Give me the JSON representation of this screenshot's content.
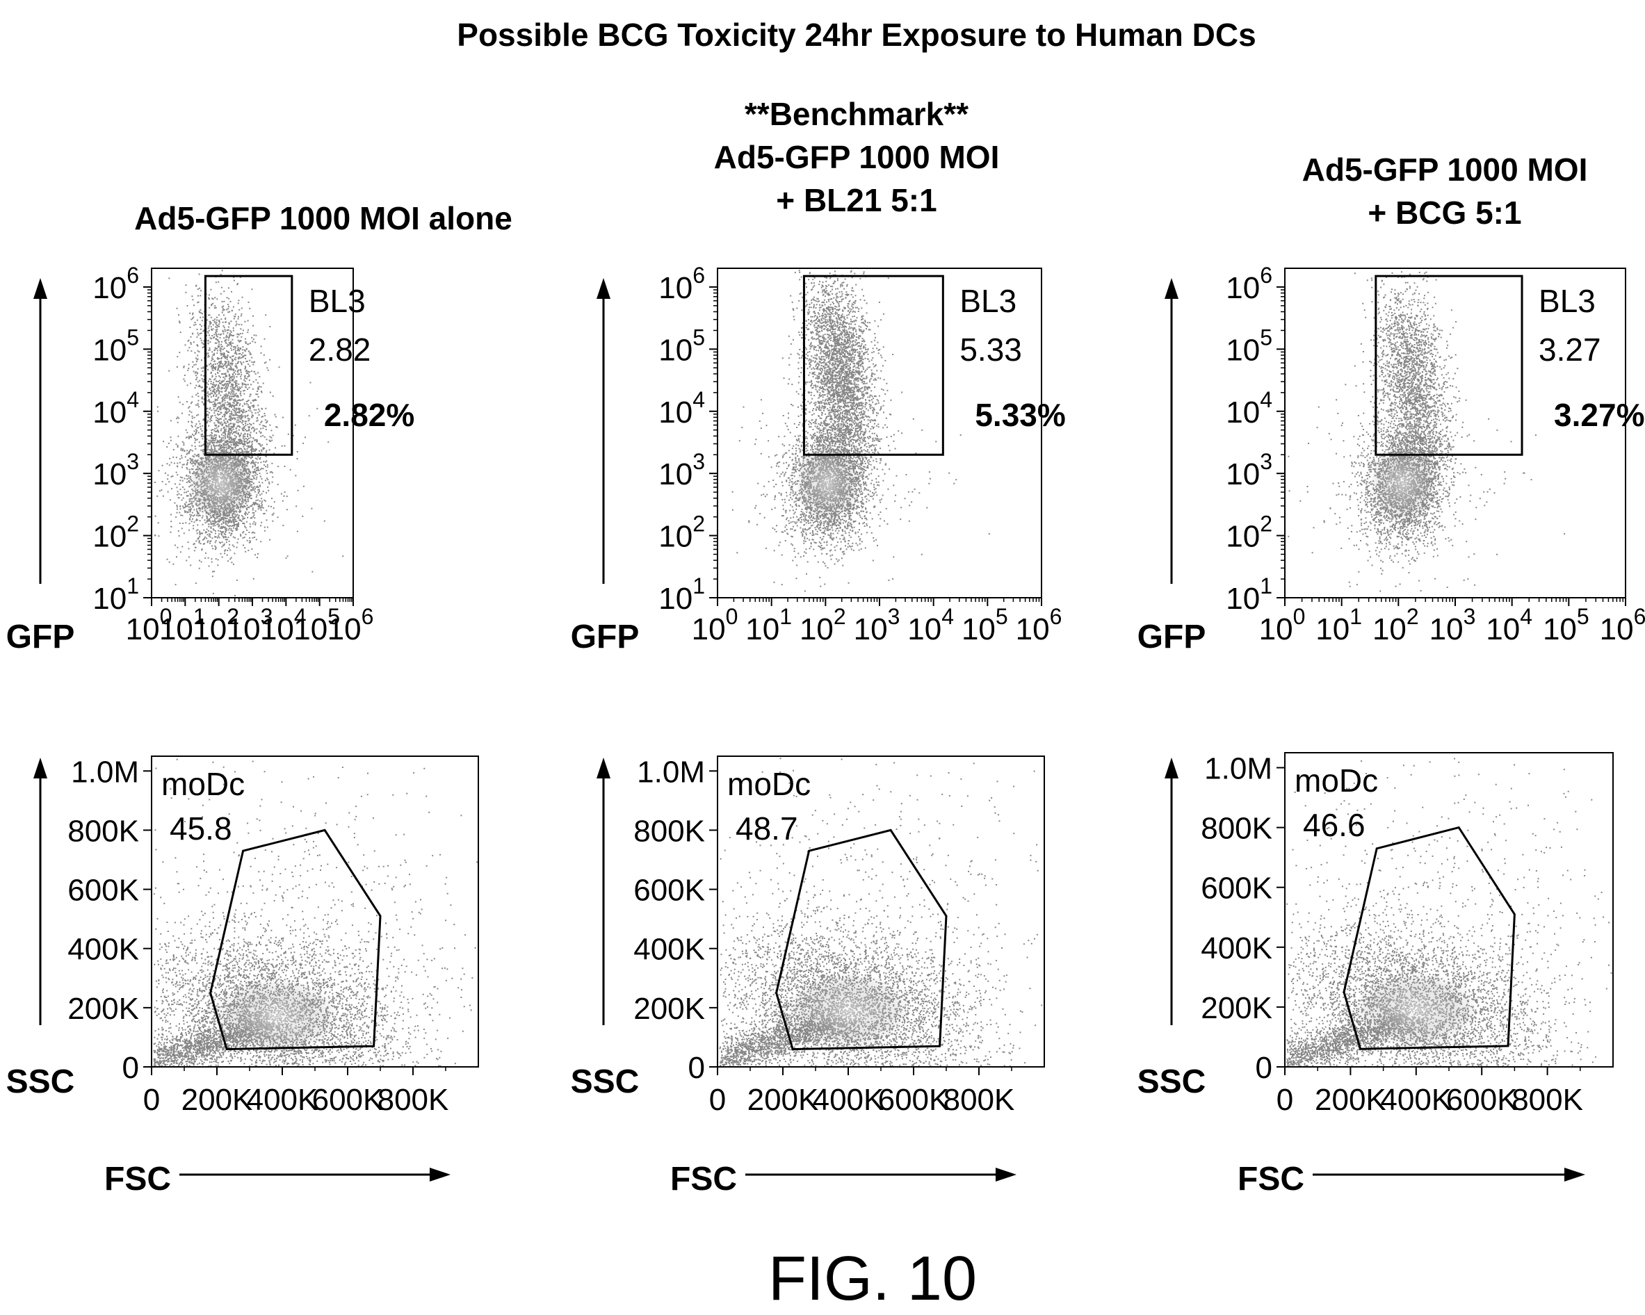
{
  "title": "Possible BCG Toxicity 24hr Exposure to Human DCs",
  "figure_label": "FIG. 10",
  "panels": [
    {
      "title_lines": [
        "Ad5-GFP 1000 MOI alone"
      ]
    },
    {
      "title_lines": [
        "**Benchmark**",
        "Ad5-GFP 1000 MOI",
        "+ BL21 5:1"
      ]
    },
    {
      "title_lines": [
        "Ad5-GFP 1000 MOI",
        "+ BCG 5:1"
      ]
    }
  ],
  "chart_data": [
    {
      "type": "scatter",
      "subtype": "flow-cytometry-density",
      "condition": "Ad5-GFP 1000 MOI alone",
      "xlabel": "",
      "ylabel": "GFP",
      "x_scale": "log",
      "y_scale": "log",
      "xlim": [
        1,
        1000000
      ],
      "ylim": [
        10,
        2000000
      ],
      "x_ticks": [
        "0",
        "1",
        "2",
        "3",
        "4",
        "5",
        "6"
      ],
      "y_ticks": [
        "1",
        "2",
        "3",
        "4",
        "5",
        "6"
      ],
      "tick_base": "10",
      "gate": {
        "name": "BL3",
        "value": "2.82",
        "percent": "2.82%",
        "shape": "rectangle",
        "x_range": [
          40,
          15000
        ],
        "y_range": [
          2000,
          1500000
        ]
      },
      "population": {
        "center": [
          120,
          700
        ],
        "positive_center": [
          160,
          25000
        ]
      }
    },
    {
      "type": "scatter",
      "subtype": "flow-cytometry-density",
      "condition": "Ad5-GFP 1000 MOI + BL21 5:1",
      "xlabel": "",
      "ylabel": "GFP",
      "x_scale": "log",
      "y_scale": "log",
      "xlim": [
        1,
        1000000
      ],
      "ylim": [
        10,
        2000000
      ],
      "x_ticks": [
        "0",
        "1",
        "2",
        "3",
        "4",
        "5",
        "6"
      ],
      "y_ticks": [
        "1",
        "2",
        "3",
        "4",
        "5",
        "6"
      ],
      "tick_base": "10",
      "gate": {
        "name": "BL3",
        "value": "5.33",
        "percent": "5.33%",
        "shape": "rectangle",
        "x_range": [
          40,
          15000
        ],
        "y_range": [
          2000,
          1500000
        ]
      },
      "population": {
        "center": [
          110,
          700
        ],
        "positive_center": [
          180,
          40000
        ]
      }
    },
    {
      "type": "scatter",
      "subtype": "flow-cytometry-density",
      "condition": "Ad5-GFP 1000 MOI + BCG 5:1",
      "xlabel": "",
      "ylabel": "GFP",
      "x_scale": "log",
      "y_scale": "log",
      "xlim": [
        1,
        1000000
      ],
      "ylim": [
        10,
        2000000
      ],
      "x_ticks": [
        "0",
        "1",
        "2",
        "3",
        "4",
        "5",
        "6"
      ],
      "y_ticks": [
        "1",
        "2",
        "3",
        "4",
        "5",
        "6"
      ],
      "tick_base": "10",
      "gate": {
        "name": "BL3",
        "value": "3.27",
        "percent": "3.27%",
        "shape": "rectangle",
        "x_range": [
          40,
          15000
        ],
        "y_range": [
          2000,
          1500000
        ]
      },
      "population": {
        "center": [
          120,
          700
        ],
        "positive_center": [
          170,
          30000
        ]
      }
    },
    {
      "type": "scatter",
      "subtype": "flow-cytometry-density",
      "condition": "Ad5-GFP 1000 MOI alone",
      "xlabel": "FSC",
      "ylabel": "SSC",
      "x_scale": "linear",
      "y_scale": "linear",
      "xlim": [
        0,
        1000000
      ],
      "ylim": [
        0,
        1050000
      ],
      "x_ticks": [
        "0",
        "200K",
        "400K",
        "600K",
        "800K"
      ],
      "x_tick_values": [
        0,
        200000,
        400000,
        600000,
        800000
      ],
      "y_ticks": [
        "0",
        "200K",
        "400K",
        "600K",
        "800K",
        "1.0M"
      ],
      "y_tick_values": [
        0,
        200000,
        400000,
        600000,
        800000,
        1000000
      ],
      "gate": {
        "name": "moDc",
        "value": "45.8",
        "shape": "polygon",
        "vertices": [
          [
            180000,
            250000
          ],
          [
            280000,
            730000
          ],
          [
            530000,
            800000
          ],
          [
            700000,
            510000
          ],
          [
            680000,
            70000
          ],
          [
            230000,
            60000
          ]
        ]
      },
      "population": {
        "center": [
          380000,
          170000
        ]
      }
    },
    {
      "type": "scatter",
      "subtype": "flow-cytometry-density",
      "condition": "Ad5-GFP 1000 MOI + BL21 5:1",
      "xlabel": "FSC",
      "ylabel": "SSC",
      "x_scale": "linear",
      "y_scale": "linear",
      "xlim": [
        0,
        1000000
      ],
      "ylim": [
        0,
        1050000
      ],
      "x_ticks": [
        "0",
        "200K",
        "400K",
        "600K",
        "800K"
      ],
      "x_tick_values": [
        0,
        200000,
        400000,
        600000,
        800000
      ],
      "y_ticks": [
        "0",
        "200K",
        "400K",
        "600K",
        "800K",
        "1.0M"
      ],
      "y_tick_values": [
        0,
        200000,
        400000,
        600000,
        800000,
        1000000
      ],
      "gate": {
        "name": "moDc",
        "value": "48.7",
        "shape": "polygon",
        "vertices": [
          [
            180000,
            250000
          ],
          [
            280000,
            730000
          ],
          [
            530000,
            800000
          ],
          [
            700000,
            510000
          ],
          [
            680000,
            70000
          ],
          [
            230000,
            60000
          ]
        ]
      },
      "population": {
        "center": [
          400000,
          190000
        ]
      }
    },
    {
      "type": "scatter",
      "subtype": "flow-cytometry-density",
      "condition": "Ad5-GFP 1000 MOI + BCG 5:1",
      "xlabel": "FSC",
      "ylabel": "SSC",
      "x_scale": "linear",
      "y_scale": "linear",
      "xlim": [
        0,
        1000000
      ],
      "ylim": [
        0,
        1050000
      ],
      "x_ticks": [
        "0",
        "200K",
        "400K",
        "600K",
        "800K"
      ],
      "x_tick_values": [
        0,
        200000,
        400000,
        600000,
        800000
      ],
      "y_ticks": [
        "0",
        "200K",
        "400K",
        "600K",
        "800K",
        "1.0M"
      ],
      "y_tick_values": [
        0,
        200000,
        400000,
        600000,
        800000,
        1000000
      ],
      "gate": {
        "name": "moDc",
        "value": "46.6",
        "shape": "polygon",
        "vertices": [
          [
            180000,
            250000
          ],
          [
            280000,
            730000
          ],
          [
            530000,
            800000
          ],
          [
            700000,
            510000
          ],
          [
            680000,
            70000
          ],
          [
            230000,
            60000
          ]
        ]
      },
      "population": {
        "center": [
          400000,
          190000
        ]
      }
    }
  ]
}
